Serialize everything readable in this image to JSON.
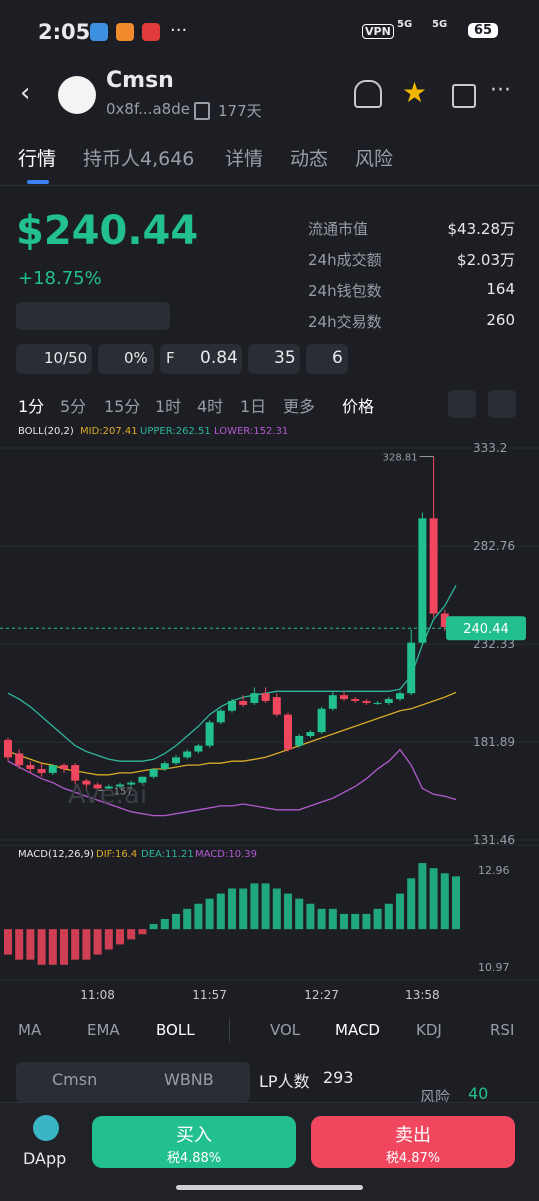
{
  "status_bar": {
    "time": "2:05",
    "vpn": "VPN",
    "network_1": "5G",
    "network_2": "5G",
    "battery": "65"
  },
  "header": {
    "name": "Cmsn",
    "address": "0x8f...a8de",
    "age": "177天"
  },
  "tabs": [
    "行情",
    "持币人4,646",
    "详情",
    "动态",
    "风险"
  ],
  "price": {
    "value": "$240.44",
    "change": "+18.75%"
  },
  "stats": [
    {
      "label": "流通市值",
      "value": "$43.28万"
    },
    {
      "label": "24h成交额",
      "value": "$2.03万"
    },
    {
      "label": "24h钱包数",
      "value": 164
    },
    {
      "label": "24h交易数",
      "value": 260
    }
  ],
  "badges": [
    "10/50",
    "0%",
    "F",
    "0.84",
    "35",
    "6"
  ],
  "intervals": [
    "1分",
    "5分",
    "15分",
    "1时",
    "4时",
    "1日",
    "更多",
    "价格"
  ],
  "chart_data": {
    "type": "candlestick",
    "indicator": "BOLL(20,2)",
    "mid_label": "MID:207.41",
    "upper_label": "UPPER:262.51",
    "lower_label": "LOWER:152.31",
    "watermark": "Ave.ai",
    "categories": [
      null,
      null,
      null,
      null,
      null,
      null,
      null,
      null,
      "11:08",
      null,
      null,
      null,
      null,
      null,
      null,
      null,
      null,
      null,
      "11:57",
      null,
      null,
      null,
      null,
      null,
      null,
      null,
      null,
      null,
      "12:27",
      null,
      null,
      null,
      null,
      null,
      null,
      null,
      null,
      "13:58",
      null,
      null,
      null
    ],
    "open": [
      183,
      176,
      170,
      168,
      166,
      170,
      170,
      162,
      160,
      158,
      159,
      160,
      161,
      164,
      168,
      171,
      174,
      177,
      180,
      192,
      198,
      203,
      202,
      207,
      205,
      196,
      180,
      185,
      187,
      199,
      206,
      204,
      203,
      202,
      202,
      204,
      207,
      233,
      297,
      248,
      241
    ],
    "high": [
      184,
      178,
      172,
      171,
      170,
      171,
      171,
      163,
      161,
      160,
      161,
      162,
      164,
      168,
      172,
      175,
      178,
      181,
      193,
      199,
      204,
      206,
      210,
      210,
      207,
      197,
      186,
      188,
      200,
      208,
      208,
      205,
      204,
      203,
      205,
      208,
      240,
      300,
      328.81,
      250,
      246
    ],
    "low": [
      172,
      168,
      166,
      164,
      165,
      166,
      160,
      158,
      157,
      157.15,
      158,
      159,
      160,
      163,
      167,
      170,
      173,
      176,
      179,
      191,
      197,
      200,
      201,
      202,
      195,
      177,
      179,
      184,
      186,
      198,
      203,
      202,
      201,
      201,
      201,
      203,
      206,
      232,
      246,
      239,
      238
    ],
    "close": [
      174,
      170,
      168,
      166,
      170,
      168,
      162,
      160,
      158,
      159,
      160,
      161,
      164,
      168,
      171,
      174,
      177,
      180,
      192,
      198,
      203,
      201,
      207,
      203,
      196,
      178,
      185,
      187,
      199,
      206,
      204,
      203,
      202,
      202,
      204,
      207,
      233,
      297,
      248,
      241,
      240.44
    ],
    "up_color": "#22c08e",
    "down_color": "#f0475e",
    "ylim": [
      128.89,
      338.35
    ],
    "yticks": [
      131.46,
      181.89,
      232.33,
      282.76,
      333.2
    ],
    "boll": {
      "upper": [
        207,
        204,
        200,
        195,
        190,
        185,
        180,
        177,
        175,
        173,
        172,
        172,
        172,
        173,
        176,
        180,
        185,
        190,
        196,
        200,
        203,
        205,
        206,
        207,
        208,
        208,
        208,
        208,
        208,
        208,
        208,
        208,
        208,
        208,
        208,
        209,
        216,
        232,
        245,
        252,
        262.51
      ],
      "upper_color": "#2fb59a",
      "mid": [
        177,
        175,
        173,
        171,
        170,
        168,
        167,
        166,
        165,
        165,
        166,
        166,
        167,
        168,
        168,
        169,
        170,
        170,
        171,
        171,
        172,
        172,
        173,
        174,
        176,
        178,
        180,
        182,
        184,
        186,
        188,
        190,
        192,
        194,
        196,
        198,
        199,
        201,
        203,
        205,
        207.41
      ],
      "mid_color": "#d9a928",
      "lower": [
        172,
        169,
        166,
        163,
        161,
        158,
        156,
        154,
        152,
        150,
        148,
        146,
        145,
        144,
        144,
        145,
        146,
        147,
        148,
        149,
        149,
        150,
        149,
        148,
        147,
        147,
        147,
        149,
        151,
        153,
        156,
        159,
        163,
        168,
        172,
        178,
        170,
        158,
        155,
        154,
        152.31
      ],
      "lower_color": "#b45ad0"
    },
    "macd": {
      "title": "MACD(12,26,9)",
      "dif_label": "DIF:16.4",
      "dea_label": "DEA:11.21",
      "macd_label": "MACD:10.39",
      "axis_labels": [
        "12.96",
        "10.97"
      ],
      "ylim": [
        -10,
        14
      ],
      "histogram": [
        -5,
        -6,
        -6,
        -7,
        -7,
        -7,
        -6,
        -6,
        -5,
        -4,
        -3,
        -2,
        -1,
        1,
        2,
        3,
        4,
        5,
        6,
        7,
        8,
        8,
        9,
        9,
        8,
        7,
        6,
        5,
        4,
        4,
        3,
        3,
        3,
        4,
        5,
        7,
        10,
        13,
        12,
        11,
        10.39
      ]
    }
  },
  "indicator_tabs": [
    "MA",
    "EMA",
    "BOLL",
    "VOL",
    "MACD",
    "KDJ",
    "RSI"
  ],
  "pair": {
    "base": "Cmsn",
    "quote": "WBNB",
    "lp_label": "LP人数",
    "lp_count": 293,
    "risk_label": "风险",
    "risk_score": 40
  },
  "actions": {
    "dapp": "DApp",
    "buy": "买入",
    "buy_tax": "税4.88%",
    "sell": "卖出",
    "sell_tax": "税4.87%"
  }
}
